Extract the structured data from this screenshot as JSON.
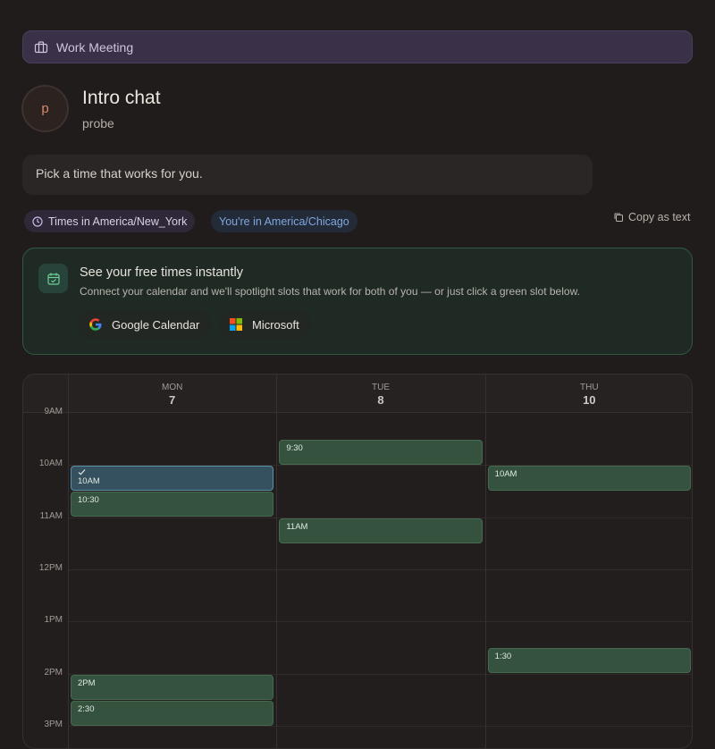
{
  "meeting_type": "Work Meeting",
  "event": {
    "avatar_initial": "p",
    "title": "Intro chat",
    "host": "probe"
  },
  "message": "Pick a time that works for you.",
  "timezone": {
    "times_in": "Times in America/New_York",
    "you_are_in": "You're in America/Chicago"
  },
  "copy_button": "Copy as text",
  "calendar_prompt": {
    "title": "See your free times instantly",
    "subtitle": "Connect your calendar and we'll spotlight slots that work for both of you — or just click a green slot below.",
    "buttons": [
      "Google Calendar",
      "Microsoft"
    ]
  },
  "schedule": {
    "hours": [
      "9AM",
      "10AM",
      "11AM",
      "12PM",
      "1PM",
      "2PM",
      "3PM"
    ],
    "days": [
      {
        "weekday": "MON",
        "date": "7",
        "slots": [
          {
            "label": "10AM",
            "selected": true
          },
          {
            "label": "10:30"
          },
          {
            "label": "2PM"
          },
          {
            "label": "2:30"
          }
        ]
      },
      {
        "weekday": "TUE",
        "date": "8",
        "slots": [
          {
            "label": "9:30"
          },
          {
            "label": "11AM"
          }
        ]
      },
      {
        "weekday": "THU",
        "date": "10",
        "slots": [
          {
            "label": "10AM"
          },
          {
            "label": "1:30"
          }
        ]
      }
    ]
  }
}
